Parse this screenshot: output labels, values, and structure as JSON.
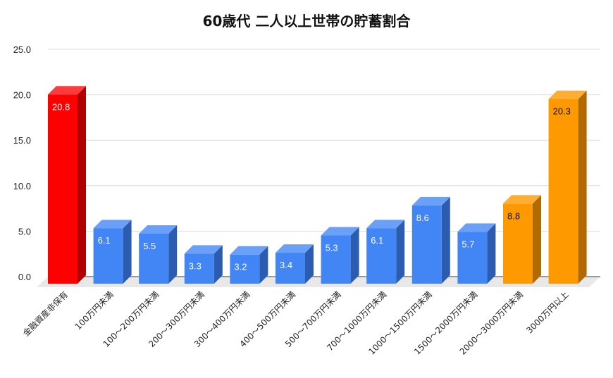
{
  "chart_data": {
    "type": "bar",
    "style": "3d-column",
    "title": "60歳代 二人以上世帯の貯蓄割合",
    "xlabel": "",
    "ylabel": "",
    "ylim": [
      0,
      25
    ],
    "yticks": [
      "0.0",
      "5.0",
      "10.0",
      "15.0",
      "20.0",
      "25.0"
    ],
    "grid": true,
    "legend": null,
    "categories": [
      "金融資産非保有",
      "100万円未満",
      "100〜200万円未満",
      "200〜300万円未満",
      "300〜400万円未満",
      "400〜500万円未満",
      "500〜700万円未満",
      "700〜1000万円未満",
      "1000〜1500万円未満",
      "1500〜2000万円未満",
      "2000〜3000万円未満",
      "3000万円以上"
    ],
    "values": [
      20.8,
      6.1,
      5.5,
      3.3,
      3.2,
      3.4,
      5.3,
      6.1,
      8.6,
      5.7,
      8.8,
      20.3
    ],
    "value_labels": [
      "20.8",
      "6.1",
      "5.5",
      "3.3",
      "3.2",
      "3.4",
      "5.3",
      "6.1",
      "8.6",
      "5.7",
      "8.8",
      "20.3"
    ],
    "bar_colors": [
      "#ff0000",
      "#4285f4",
      "#4285f4",
      "#4285f4",
      "#4285f4",
      "#4285f4",
      "#4285f4",
      "#4285f4",
      "#4285f4",
      "#4285f4",
      "#ff9900",
      "#ff9900"
    ],
    "side_colors": [
      "#b00000",
      "#2b5cb0",
      "#2b5cb0",
      "#2b5cb0",
      "#2b5cb0",
      "#2b5cb0",
      "#2b5cb0",
      "#2b5cb0",
      "#2b5cb0",
      "#2b5cb0",
      "#b06a00",
      "#b06a00"
    ],
    "top_colors": [
      "#ff3b3b",
      "#6aa0f7",
      "#6aa0f7",
      "#6aa0f7",
      "#6aa0f7",
      "#6aa0f7",
      "#6aa0f7",
      "#6aa0f7",
      "#6aa0f7",
      "#6aa0f7",
      "#ffad33",
      "#ffad33"
    ],
    "label_colors": [
      "#ffffff",
      "#ffffff",
      "#ffffff",
      "#ffffff",
      "#ffffff",
      "#ffffff",
      "#ffffff",
      "#ffffff",
      "#ffffff",
      "#ffffff",
      "#111111",
      "#111111"
    ]
  }
}
